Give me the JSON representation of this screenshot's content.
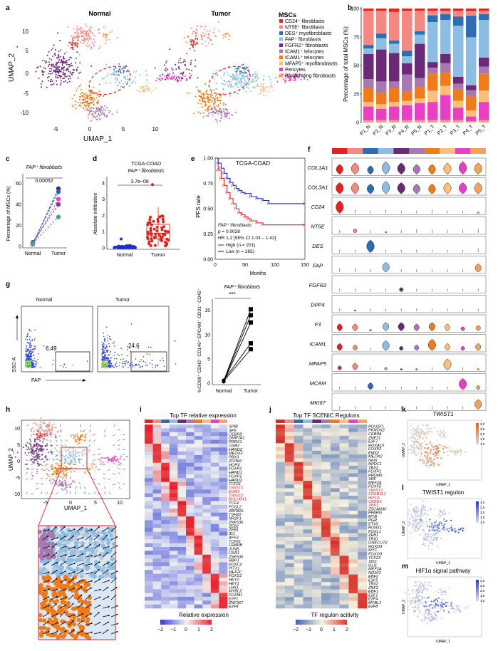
{
  "panel_letters": [
    "a",
    "b",
    "c",
    "d",
    "e",
    "f",
    "g",
    "h",
    "i",
    "j",
    "k",
    "l",
    "m"
  ],
  "colors": {
    "CD24": "#e4231f",
    "NT5E": "#f28a82",
    "DES": "#2f6db2",
    "FAP": "#8dbde3",
    "FGFR2": "#6a2a77",
    "ICAM1": "#ee7b1c",
    "MFAP5": "#f8bf7f",
    "ICAM2": "#a779b3",
    "Pericytes": "#e840c2",
    "Proliferating": "#f6a35a",
    "red_outline": "#e02020",
    "high": "#e0221e",
    "low": "#1f2bd1"
  },
  "legend_items": [
    {
      "name": "CD24⁺ fibroblasts",
      "color": "#e4231f"
    },
    {
      "name": "NT5E⁺ fibroblasts",
      "color": "#f28a82"
    },
    {
      "name": "DES⁺ myofibroblasts",
      "color": "#2f6db2"
    },
    {
      "name": "FAP⁺ fibroblasts",
      "color": "#8dbde3"
    },
    {
      "name": "FGFR2⁺ fibroblasts",
      "color": "#6a2a77"
    },
    {
      "name": "ICAM1⁺ telocytes",
      "color": "#a779b3"
    },
    {
      "name": "ICAM1⁺ telocytes",
      "color": "#ee7b1c"
    },
    {
      "name": "MFAP5⁺ myofibroblasts",
      "color": "#f8bf7f"
    },
    {
      "name": "Pericytes",
      "color": "#e840c2"
    },
    {
      "name": "Proliferating fibroblasts",
      "color": "#f6a35a"
    }
  ],
  "chart_data": [
    {
      "id": "a",
      "type": "scatter",
      "titles": [
        "Normal",
        "Tumor"
      ],
      "xlabel": "UMAP_1",
      "ylabel": "UMAP_2",
      "legend_title": "MSCs",
      "xticks": [
        "-5",
        "0",
        "5",
        "10"
      ],
      "yticks": [
        "10",
        "5",
        "0",
        "-5",
        "-10"
      ],
      "xlim": [
        -8,
        12
      ],
      "ylim": [
        -12,
        12
      ]
    },
    {
      "id": "b",
      "type": "bar",
      "ylabel": "Percentage of total MSCs (%)",
      "categories": [
        "P1_N",
        "P2_N",
        "P3_N",
        "P4_N",
        "P5_N",
        "P1_T",
        "P2_T",
        "P3_T",
        "P4_T",
        "P5_T"
      ],
      "yticks": [
        "0",
        "25",
        "50",
        "75",
        "100"
      ],
      "ylim": [
        0,
        100
      ],
      "series": [
        {
          "name": "CD24",
          "values": [
            2,
            2,
            3,
            2,
            2,
            2,
            2,
            2,
            2,
            2
          ]
        },
        {
          "name": "NT5E",
          "values": [
            30,
            20,
            25,
            35,
            18,
            4,
            3,
            5,
            4,
            3
          ]
        },
        {
          "name": "DES",
          "values": [
            3,
            4,
            3,
            5,
            3,
            6,
            5,
            8,
            18,
            5
          ]
        },
        {
          "name": "FAP",
          "values": [
            5,
            10,
            8,
            6,
            8,
            35,
            30,
            45,
            40,
            33
          ]
        },
        {
          "name": "FGFR2",
          "values": [
            22,
            28,
            25,
            10,
            30,
            5,
            8,
            6,
            4,
            8
          ]
        },
        {
          "name": "ICAM2",
          "values": [
            8,
            10,
            6,
            15,
            8,
            5,
            8,
            5,
            5,
            6
          ]
        },
        {
          "name": "ICAM1",
          "values": [
            12,
            10,
            12,
            8,
            10,
            15,
            12,
            10,
            12,
            15
          ]
        },
        {
          "name": "MFAP5",
          "values": [
            4,
            4,
            4,
            4,
            4,
            10,
            8,
            6,
            5,
            10
          ]
        },
        {
          "name": "Pericytes",
          "values": [
            12,
            10,
            12,
            13,
            15,
            16,
            22,
            11,
            4,
            16
          ]
        },
        {
          "name": "Proliferating",
          "values": [
            2,
            2,
            2,
            2,
            2,
            2,
            2,
            2,
            1,
            2
          ]
        }
      ]
    },
    {
      "id": "c",
      "type": "line",
      "title": "FAP⁺ fibroblasts",
      "ylabel": "Percentage of MSCs (%)",
      "categories": [
        "Normal",
        "Tumor"
      ],
      "pvalue": "0.00052",
      "yticks": [
        "0",
        "20",
        "40",
        "60"
      ],
      "ylim": [
        0,
        65
      ],
      "pairs": [
        [
          2,
          55
        ],
        [
          3,
          52
        ],
        [
          2,
          45
        ],
        [
          4,
          40
        ],
        [
          3,
          28
        ]
      ]
    },
    {
      "id": "d",
      "type": "scatter",
      "title_line1": "TCGA-COAD",
      "title_line2": "FAP⁺ fibroblasts",
      "ylabel": "Absolute infiltration",
      "categories": [
        "Normal",
        "Tumor"
      ],
      "pvalue": "3.7e−08",
      "yticks": [
        "0",
        "1",
        "2",
        "3",
        "4"
      ],
      "ylim": [
        0,
        4.3
      ],
      "normal_box": {
        "q1": 0.02,
        "median": 0.05,
        "q3": 0.1,
        "min": 0,
        "max": 0.25
      },
      "tumor_box": {
        "q1": 0.55,
        "median": 0.9,
        "q3": 1.45,
        "min": 0.1,
        "max": 2.5
      }
    },
    {
      "id": "e",
      "type": "line",
      "title": "TCGA-COAD",
      "ylabel": "PFS rate",
      "xlabel": "Months",
      "xticks": [
        "0",
        "50",
        "100",
        "150"
      ],
      "yticks": [
        "1.00",
        "0.75",
        "0.50",
        "0.25",
        "0.00"
      ],
      "xlim": [
        0,
        150
      ],
      "ylim": [
        0,
        1
      ],
      "annotation_lines": [
        "FAP⁺ fibroblasts",
        "p = 0.0028",
        "HR 1.2 [95% CI 1.03 – 1.42]"
      ],
      "legend": [
        "High (n = 201)",
        "Low (n = 265)"
      ],
      "series": [
        {
          "name": "High",
          "x": [
            0,
            5,
            10,
            15,
            20,
            25,
            30,
            35,
            40,
            45,
            50,
            55,
            60,
            70,
            80,
            150
          ],
          "y": [
            1,
            0.88,
            0.8,
            0.73,
            0.66,
            0.6,
            0.55,
            0.5,
            0.46,
            0.44,
            0.42,
            0.4,
            0.38,
            0.36,
            0.34,
            0.34
          ]
        },
        {
          "name": "Low",
          "x": [
            0,
            5,
            10,
            15,
            20,
            25,
            30,
            35,
            40,
            45,
            50,
            60,
            70,
            80,
            90,
            150
          ],
          "y": [
            1,
            0.95,
            0.9,
            0.85,
            0.8,
            0.76,
            0.73,
            0.7,
            0.68,
            0.66,
            0.65,
            0.62,
            0.6,
            0.58,
            0.55,
            0.55
          ]
        }
      ]
    },
    {
      "id": "f",
      "type": "violin",
      "genes": [
        "COL1A1",
        "COL3A1",
        "CD24",
        "NT5E",
        "DES",
        "FAP",
        "FGFR2",
        "DPP4",
        "F3",
        "ICAM1",
        "MFAP5",
        "MCAM",
        "MKI67"
      ]
    },
    {
      "id": "g",
      "type": "scatter",
      "flow_titles": [
        "Normal",
        "Tumor"
      ],
      "gate_values": [
        "6.49",
        "24.6"
      ],
      "flow_xlabel": "FAP",
      "flow_ylabel": "SSC-A",
      "right_title": "FAP⁺ fibroblasts",
      "right_ylabel": "%CD90⁺ CDH2⁻ CD146⁺ EPCAM⁻ CD31⁻ CD45⁻",
      "categories": [
        "Normal",
        "Tumor"
      ],
      "significance": "***",
      "yticks": [
        "0",
        "5",
        "10",
        "15"
      ],
      "ylim": [
        0,
        17
      ],
      "pairs": [
        [
          0.5,
          15.2
        ],
        [
          0.4,
          14.0
        ],
        [
          0.3,
          12.5
        ],
        [
          0.6,
          8.2
        ],
        [
          0.4,
          7.0
        ]
      ]
    },
    {
      "id": "h",
      "type": "scatter",
      "xlabel": "UMAP_1",
      "ylabel": "UMAP_2",
      "xticks": [
        "-5",
        "0",
        "5",
        "10"
      ],
      "yticks": [
        "10",
        "5",
        "0",
        "-5",
        "-10"
      ]
    },
    {
      "id": "i",
      "type": "heatmap",
      "title": "Top TF relative expression",
      "legend_title": "Relative expression",
      "scale": [
        "−2",
        "−1",
        "0",
        "1",
        "2"
      ],
      "rows": [
        "SPIB",
        "SP6",
        "CEBPD",
        "DMRTA1",
        "PRRX1",
        "OSR2",
        "HAND2",
        "MEOX2",
        "PBX3",
        "ZFPM2",
        "HOPX",
        "FOXP2",
        "HAND1",
        "FOXP1",
        "HAND2",
        "TCF21",
        "TWIST1",
        "EGR3",
        "TWIST2",
        "BHLHE41",
        "TCF4",
        "FOSL2",
        "ZBTB16",
        "TSHZ2",
        "NR2F1",
        "ZNF536",
        "ZEB2",
        "ZEB1",
        "ID1",
        "AFF3",
        "TCF21",
        "CEBPB",
        "JUNB",
        "OSR1",
        "ZNF536",
        "RBPJ",
        "FOXC2",
        "PITX1",
        "MEF2C",
        "FOXS1",
        "HEY2",
        "HEY1",
        "LHX1",
        "MYBL2",
        "FOXM1",
        "E2F1",
        "ZNF367",
        "E2F8"
      ],
      "red_rows": [
        16,
        17,
        18,
        19
      ]
    },
    {
      "id": "j",
      "type": "heatmap",
      "title": "Top TF SCENIC Regulons",
      "legend_title": "TF regulon acitivity",
      "scale": [
        "−2",
        "−1",
        "0",
        "1",
        "2"
      ],
      "rows": [
        "POU2F1",
        "PKNOX2",
        "CEBPA",
        "ZNF71",
        "E2F7",
        "HOXA10",
        "FOXP2",
        "EMX2",
        "MEOX2",
        "NFIX",
        "NPDC1",
        "TBX2",
        "FOXP1",
        "PRDM6",
        "SRF",
        "MEF2A",
        "FOXF2",
        "TWIST1",
        "CREB3L1",
        "HIF1A",
        "CREB3",
        "XBP1",
        "ZSCAN30",
        "PPARG",
        "MYB",
        "PGR",
        "ETV5",
        "RUNX1",
        "FOXL1",
        "ZEB1",
        "TRIO",
        "ONECUT2",
        "HOXD9",
        "MYC",
        "FOXO3",
        "TCF23",
        "SIX1",
        "GLI1",
        "MEF2A",
        "NR2F2",
        "EBF2",
        "E2F2",
        "TBX2",
        "ZNF2",
        "EBF1",
        "E2F1",
        "E2F4",
        "MYBL1",
        "E2F8"
      ],
      "red_rows": [
        17,
        18,
        19,
        20,
        21
      ]
    },
    {
      "id": "klm",
      "type": "scatter",
      "titles": [
        "TWIST1",
        "TWIST1 regulon",
        "HIF1α signal pathway"
      ],
      "xlabel": "UMAP_1",
      "ylabel": "UMAP_2",
      "scale": [
        "3.0",
        "2.5",
        "2.0",
        "1.5",
        "1.0"
      ]
    }
  ]
}
